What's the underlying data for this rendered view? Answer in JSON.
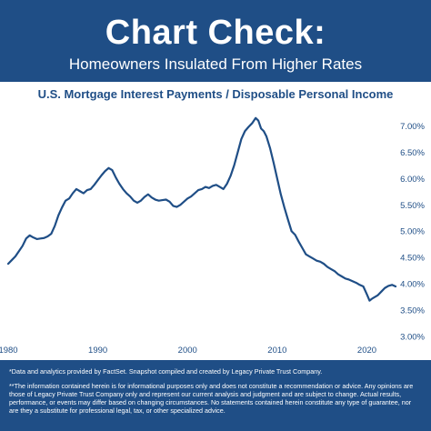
{
  "header": {
    "title": "Chart Check:",
    "subtitle": "Homeowners Insulated From Higher Rates"
  },
  "footer": {
    "note1": "*Data and analytics provided by FactSet. Snapshot compiled and created by Legacy Private Trust Company.",
    "note2": "**The information contained herein is for informational purposes only and does not constitute a recommendation or advice. Any opinions are those of Legacy Private Trust Company only and represent our current analysis and judgment and are subject to change. Actual results, performance, or events may differ based on changing circumstances. No statements contained herein constitute any type of guarantee, nor are they a substitute for professional legal, tax, or other specialized advice."
  },
  "colors": {
    "background": "#1f4e86",
    "panel": "#ffffff",
    "line": "#1f4e86",
    "axis_text": "#1f4e86"
  },
  "chart_data": {
    "type": "line",
    "title": "U.S. Mortgage Interest Payments / Disposable Personal Income",
    "xlabel": "",
    "ylabel": "",
    "xlim": [
      1980,
      2023.5
    ],
    "ylim": [
      3.0,
      7.25
    ],
    "x_ticks": [
      1980,
      1990,
      2000,
      2010,
      2020
    ],
    "x_tick_labels": [
      "1980",
      "1990",
      "2000",
      "2010",
      "2020"
    ],
    "y_ticks": [
      3.0,
      3.5,
      4.0,
      4.5,
      5.0,
      5.5,
      6.0,
      6.5,
      7.0
    ],
    "y_tick_labels": [
      "3.00%",
      "3.50%",
      "4.00%",
      "4.50%",
      "5.00%",
      "5.50%",
      "6.00%",
      "6.50%",
      "7.00%"
    ],
    "y_axis_side": "right",
    "grid": false,
    "legend": "none",
    "series": [
      {
        "x": [
          1980.0,
          1980.4,
          1980.8,
          1981.2,
          1981.6,
          1982.0,
          1982.4,
          1982.8,
          1983.2,
          1983.6,
          1984.0,
          1984.4,
          1984.8,
          1985.2,
          1985.6,
          1986.0,
          1986.4,
          1986.8,
          1987.2,
          1987.6,
          1988.0,
          1988.4,
          1988.8,
          1989.2,
          1989.6,
          1990.0,
          1990.4,
          1990.8,
          1991.2,
          1991.6,
          1992.0,
          1992.4,
          1992.8,
          1993.2,
          1993.6,
          1994.0,
          1994.4,
          1994.8,
          1995.2,
          1995.6,
          1996.0,
          1996.4,
          1996.8,
          1997.2,
          1997.6,
          1998.0,
          1998.4,
          1998.8,
          1999.2,
          1999.6,
          2000.0,
          2000.4,
          2000.8,
          2001.2,
          2001.6,
          2002.0,
          2002.4,
          2002.8,
          2003.2,
          2003.6,
          2004.0,
          2004.4,
          2004.8,
          2005.2,
          2005.6,
          2006.0,
          2006.4,
          2006.8,
          2007.2,
          2007.6,
          2007.9,
          2008.2,
          2008.5,
          2008.8,
          2009.2,
          2009.6,
          2010.0,
          2010.4,
          2010.8,
          2011.2,
          2011.6,
          2012.0,
          2012.4,
          2012.8,
          2013.2,
          2013.6,
          2014.0,
          2014.4,
          2014.8,
          2015.2,
          2015.6,
          2016.0,
          2016.4,
          2016.8,
          2017.2,
          2017.6,
          2018.0,
          2018.4,
          2018.8,
          2019.2,
          2019.6,
          2020.0,
          2020.3,
          2020.6,
          2020.9,
          2021.2,
          2021.6,
          2022.0,
          2022.4,
          2022.8,
          2023.2
        ],
        "values": [
          4.38,
          4.45,
          4.52,
          4.62,
          4.72,
          4.86,
          4.92,
          4.88,
          4.85,
          4.86,
          4.87,
          4.9,
          4.95,
          5.1,
          5.3,
          5.45,
          5.58,
          5.62,
          5.72,
          5.8,
          5.76,
          5.72,
          5.78,
          5.8,
          5.88,
          5.97,
          6.06,
          6.14,
          6.2,
          6.16,
          6.02,
          5.9,
          5.8,
          5.72,
          5.66,
          5.58,
          5.54,
          5.58,
          5.65,
          5.7,
          5.64,
          5.6,
          5.58,
          5.59,
          5.6,
          5.56,
          5.48,
          5.46,
          5.5,
          5.56,
          5.62,
          5.66,
          5.72,
          5.78,
          5.8,
          5.84,
          5.82,
          5.86,
          5.88,
          5.84,
          5.8,
          5.9,
          6.05,
          6.25,
          6.5,
          6.75,
          6.9,
          6.98,
          7.05,
          7.15,
          7.1,
          6.95,
          6.9,
          6.8,
          6.58,
          6.3,
          6.0,
          5.7,
          5.45,
          5.22,
          5.0,
          4.93,
          4.8,
          4.68,
          4.56,
          4.52,
          4.48,
          4.44,
          4.42,
          4.38,
          4.32,
          4.28,
          4.24,
          4.18,
          4.14,
          4.1,
          4.08,
          4.05,
          4.02,
          3.98,
          3.95,
          3.8,
          3.68,
          3.72,
          3.75,
          3.78,
          3.85,
          3.92,
          3.96,
          3.98,
          3.95
        ]
      }
    ]
  }
}
